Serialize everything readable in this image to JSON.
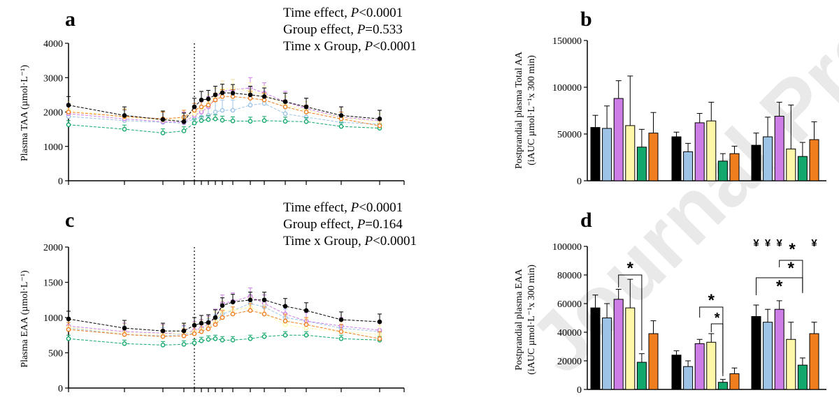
{
  "watermark": "Journal Pre-proof",
  "colors": {
    "black": "#000000",
    "blue": "#9dc3e6",
    "purple": "#cc7ee6",
    "yellow": "#fff7a8",
    "green": "#13a86b",
    "orange": "#f07d1e"
  },
  "chart_data": [
    {
      "id": "a",
      "type": "line",
      "letter": "a",
      "stats": [
        {
          "prefix": "Time effect, ",
          "p": "P",
          "suffix": "<0.0001"
        },
        {
          "prefix": "Group effect, ",
          "p": "P",
          "suffix": "=0.533"
        },
        {
          "prefix": "Time x Group, ",
          "p": "P",
          "suffix": "<0.0001"
        }
      ],
      "ylabel": "Plasma TAA (µmol·L⁻¹)",
      "ylim": [
        0,
        4000
      ],
      "yticks": [
        "0",
        "1000",
        "2000",
        "3000",
        "4000"
      ],
      "xlim": [
        -180,
        300
      ],
      "x": [
        -180,
        -100,
        -45,
        -15,
        0,
        10,
        20,
        30,
        40,
        55,
        80,
        100,
        130,
        160,
        210,
        265
      ],
      "series": [
        {
          "color": "black",
          "values": [
            2200,
            1900,
            1780,
            1720,
            2150,
            2350,
            2380,
            2500,
            2560,
            2550,
            2500,
            2450,
            2300,
            2150,
            1900,
            1800
          ],
          "err": 250
        },
        {
          "color": "blue",
          "values": [
            1870,
            1750,
            1700,
            1680,
            1800,
            1850,
            1900,
            2000,
            2050,
            2050,
            2200,
            2250,
            1950,
            1850,
            1700,
            1650
          ],
          "err": 300
        },
        {
          "color": "purple",
          "values": [
            1950,
            1800,
            1720,
            1700,
            1900,
            2000,
            2150,
            2400,
            2600,
            2650,
            2700,
            2550,
            2300,
            2100,
            1850,
            1750
          ],
          "err": 300
        },
        {
          "color": "yellow",
          "values": [
            2050,
            1850,
            1760,
            1800,
            1950,
            2100,
            2250,
            2450,
            2650,
            2700,
            2600,
            2500,
            2200,
            2050,
            1850,
            1700
          ],
          "err": 250
        },
        {
          "color": "green",
          "values": [
            1630,
            1500,
            1390,
            1450,
            1680,
            1750,
            1780,
            1800,
            1760,
            1740,
            1730,
            1750,
            1730,
            1720,
            1580,
            1530
          ],
          "err": 120
        },
        {
          "color": "orange",
          "values": [
            2000,
            1870,
            1800,
            1850,
            2050,
            2150,
            2200,
            2350,
            2450,
            2450,
            2400,
            2350,
            2150,
            2000,
            1800,
            1600
          ],
          "err": 200
        }
      ]
    },
    {
      "id": "b",
      "type": "bar",
      "letter": "b",
      "ylabel": "Postprandial plasma Total AA",
      "ylabel2": "(iAUC µmol·L⁻¹x 300 min)",
      "ylim": [
        0,
        150000
      ],
      "yticks": [
        "0",
        "50000",
        "100000",
        "150000"
      ],
      "groups": [
        {
          "values": [
            57000,
            56000,
            88000,
            59000,
            36000,
            51000
          ],
          "err": [
            13000,
            24000,
            19000,
            53000,
            19000,
            22000
          ]
        },
        {
          "values": [
            47000,
            31000,
            62000,
            64000,
            21000,
            29000
          ],
          "err": [
            5000,
            9000,
            10000,
            20000,
            8000,
            8000
          ]
        },
        {
          "values": [
            38000,
            47000,
            69000,
            34000,
            26000,
            44000
          ],
          "err": [
            13000,
            21000,
            15000,
            47000,
            15000,
            19000
          ]
        }
      ]
    },
    {
      "id": "c",
      "type": "line",
      "letter": "c",
      "stats": [
        {
          "prefix": "Time effect, ",
          "p": "P",
          "suffix": "<0.0001"
        },
        {
          "prefix": "Group effect, ",
          "p": "P",
          "suffix": "=0.164"
        },
        {
          "prefix": "Time x Group, ",
          "p": "P",
          "suffix": "<0.0001"
        }
      ],
      "ylabel": "Plasma EAA (µmol·L⁻¹)",
      "ylim": [
        0,
        2000
      ],
      "yticks": [
        "0",
        "500",
        "1000",
        "1500",
        "2000"
      ],
      "xlim": [
        -180,
        300
      ],
      "x": [
        -180,
        -100,
        -45,
        -15,
        0,
        10,
        20,
        30,
        40,
        55,
        80,
        100,
        130,
        160,
        210,
        265
      ],
      "series": [
        {
          "color": "black",
          "values": [
            980,
            850,
            810,
            810,
            890,
            920,
            930,
            1000,
            1170,
            1220,
            1250,
            1250,
            1160,
            1100,
            970,
            940
          ],
          "err": 110
        },
        {
          "color": "blue",
          "values": [
            850,
            760,
            740,
            760,
            780,
            800,
            860,
            920,
            1050,
            1100,
            1200,
            1150,
            1000,
            950,
            850,
            800
          ],
          "err": 120
        },
        {
          "color": "purple",
          "values": [
            880,
            800,
            780,
            770,
            820,
            850,
            900,
            1000,
            1200,
            1230,
            1300,
            1200,
            1050,
            950,
            880,
            820
          ],
          "err": 120
        },
        {
          "color": "yellow",
          "values": [
            860,
            780,
            760,
            780,
            800,
            830,
            870,
            950,
            1100,
            1100,
            1150,
            1050,
            900,
            850,
            800,
            760
          ],
          "err": 130
        },
        {
          "color": "green",
          "values": [
            700,
            630,
            610,
            620,
            640,
            670,
            690,
            700,
            680,
            680,
            700,
            730,
            750,
            750,
            700,
            680
          ],
          "err": 50
        },
        {
          "color": "orange",
          "values": [
            830,
            760,
            730,
            740,
            770,
            800,
            840,
            900,
            1000,
            1050,
            1100,
            1050,
            950,
            900,
            800,
            700
          ],
          "err": 100
        }
      ]
    },
    {
      "id": "d",
      "type": "bar",
      "letter": "d",
      "ylabel": "Postprandial plasma EAA",
      "ylabel2": "(iAUC µmol·L⁻¹x 300 min)",
      "ylim": [
        0,
        100000
      ],
      "yticks": [
        "0",
        "20000",
        "40000",
        "60000",
        "80000",
        "100000"
      ],
      "groups": [
        {
          "values": [
            57000,
            50000,
            63000,
            57000,
            19000,
            39000
          ],
          "err": [
            9000,
            10000,
            7000,
            20000,
            6000,
            9000
          ]
        },
        {
          "values": [
            24000,
            16000,
            32000,
            33000,
            5000,
            11000
          ],
          "err": [
            3000,
            4000,
            3000,
            6000,
            2000,
            4000
          ]
        },
        {
          "values": [
            51000,
            47000,
            56000,
            35000,
            17000,
            39000
          ],
          "err": [
            8000,
            9000,
            6000,
            12000,
            5000,
            8000
          ]
        }
      ],
      "annotations": {
        "star": "*",
        "yen": "¥"
      }
    }
  ]
}
